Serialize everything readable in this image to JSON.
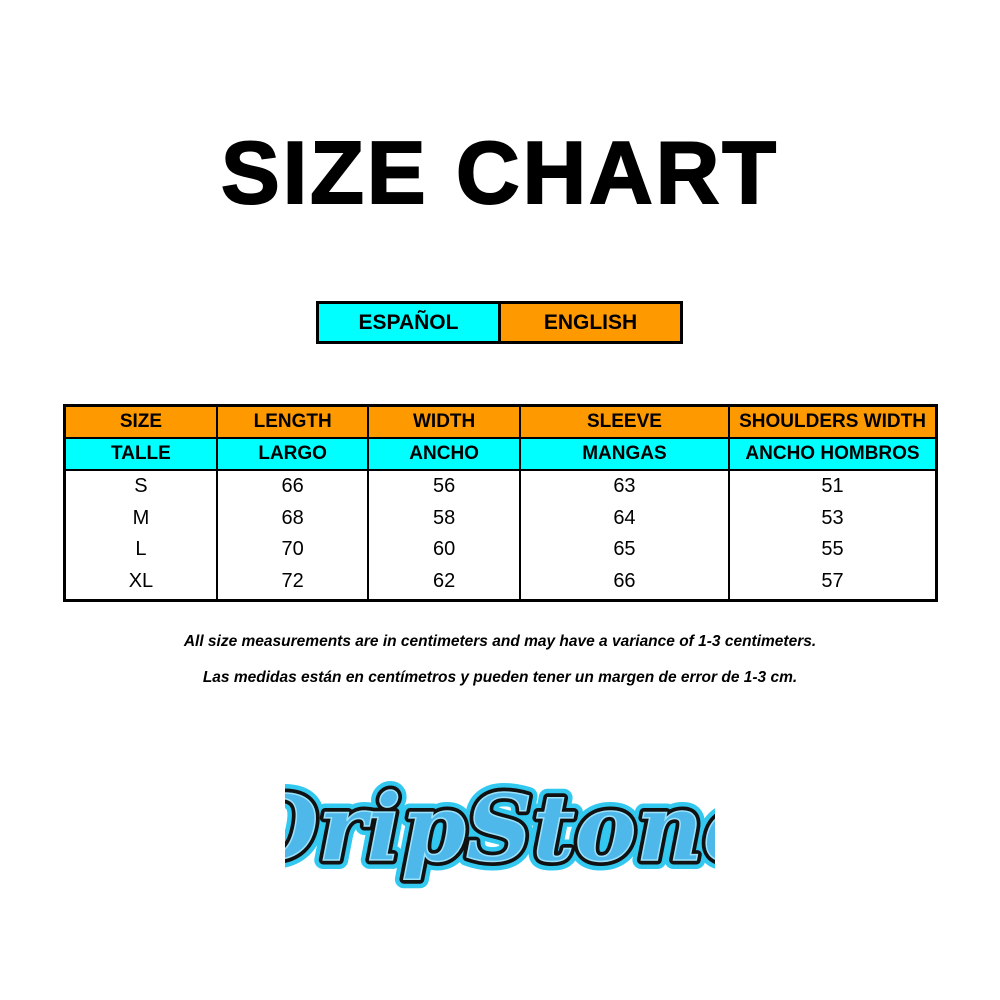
{
  "title": "SIZE CHART",
  "languages": {
    "spanish": "ESPAÑOL",
    "english": "ENGLISH"
  },
  "colors": {
    "orange": "#ff9900",
    "cyan": "#00ffff",
    "logo_blue": "#33b5e8"
  },
  "table": {
    "headers_en": [
      "SIZE",
      "LENGTH",
      "WIDTH",
      "SLEEVE",
      "SHOULDERS WIDTH"
    ],
    "headers_es": [
      "TALLE",
      "LARGO",
      "ANCHO",
      "MANGAS",
      "ANCHO HOMBROS"
    ],
    "rows": [
      [
        "S",
        "66",
        "56",
        "63",
        "51"
      ],
      [
        "M",
        "68",
        "58",
        "64",
        "53"
      ],
      [
        "L",
        "70",
        "60",
        "65",
        "55"
      ],
      [
        "XL",
        "72",
        "62",
        "66",
        "57"
      ]
    ]
  },
  "notes": {
    "english": "All size measurements are in centimeters and may have a variance of 1-3 centimeters.",
    "spanish": "Las medidas están en centímetros y pueden tener un margen de error de 1-3 cm."
  },
  "logo": {
    "text": "DripStone"
  }
}
